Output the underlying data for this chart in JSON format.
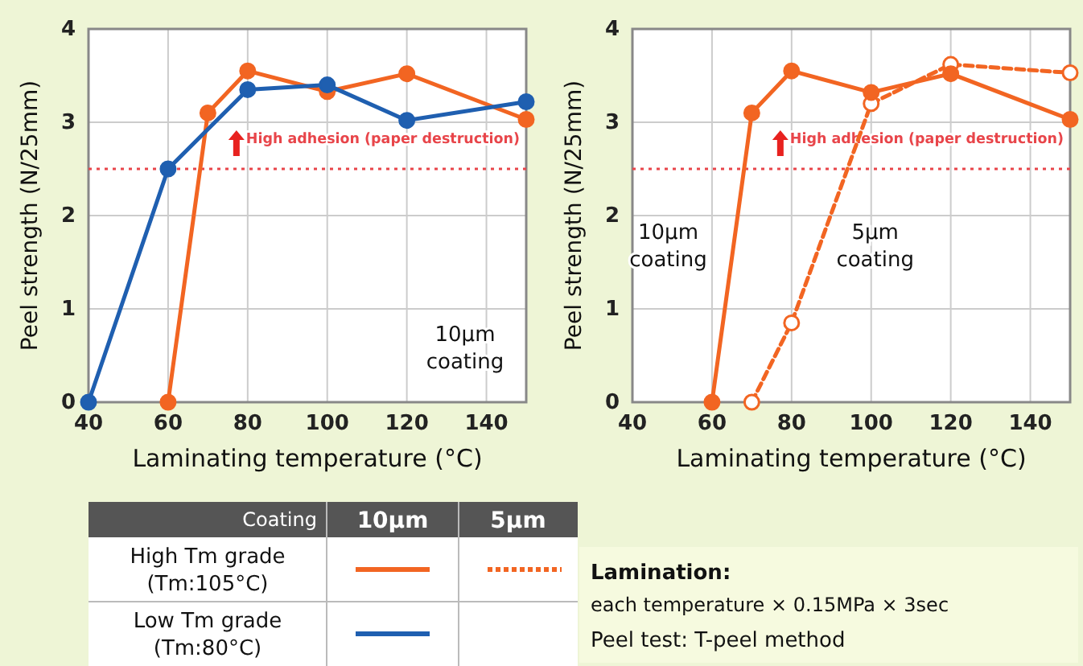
{
  "chart_data": [
    {
      "type": "line",
      "xlabel": "Laminating temperature (°C)",
      "ylabel": "Peel strength (N/25mm)",
      "xlim": [
        40,
        150
      ],
      "xticks": [
        40,
        60,
        80,
        100,
        120,
        140
      ],
      "ylim": [
        0,
        4
      ],
      "yticks": [
        0,
        1,
        2,
        3,
        4
      ],
      "grid": true,
      "marker": "circle",
      "series": [
        {
          "color": "#1f5fb0",
          "x": [
            40,
            60,
            80,
            100,
            120,
            150
          ],
          "values": [
            0,
            2.5,
            3.35,
            3.4,
            3.02,
            3.22
          ],
          "line_style": "solid"
        },
        {
          "color": "#f26522",
          "x": [
            60,
            70,
            80,
            100,
            120,
            150
          ],
          "values": [
            0,
            3.1,
            3.55,
            3.33,
            3.52,
            3.03
          ],
          "line_style": "solid"
        }
      ],
      "ref_lines": [
        {
          "axis": "y",
          "value": 2.5,
          "label": "High adhesion (paper destruction)",
          "color": "#e8454a",
          "line_style": "dotted"
        }
      ],
      "annotations": [
        "10μm\ncoating"
      ]
    },
    {
      "type": "line",
      "xlabel": "Laminating temperature (°C)",
      "ylabel": "Peel strength (N/25mm)",
      "xlim": [
        40,
        150
      ],
      "xticks": [
        40,
        60,
        80,
        100,
        120,
        140
      ],
      "ylim": [
        0,
        4
      ],
      "yticks": [
        0,
        1,
        2,
        3,
        4
      ],
      "grid": true,
      "marker": "circle",
      "series": [
        {
          "color": "#f26522",
          "x": [
            60,
            70,
            80,
            100,
            120,
            150
          ],
          "values": [
            0,
            3.1,
            3.55,
            3.32,
            3.52,
            3.03
          ],
          "line_style": "solid"
        },
        {
          "color": "#f26522",
          "x": [
            70,
            80,
            100,
            120,
            150
          ],
          "values": [
            0,
            0.85,
            3.2,
            3.62,
            3.53
          ],
          "line_style": "dashed"
        }
      ],
      "ref_lines": [
        {
          "axis": "y",
          "value": 2.5,
          "label": "High adhesion (paper destruction)",
          "color": "#e8454a",
          "line_style": "dotted"
        }
      ],
      "annotations": [
        "10μm\ncoating",
        "5μm\ncoating"
      ]
    },
    {
      "type": "other",
      "annotations": [
        "Coating",
        "10μm",
        "5μm",
        "High Tm grade\n(Tm:105°C)",
        "Low Tm grade\n(Tm:80°C)",
        "Lamination:",
        "each temperature × 0.15MPa × 3sec",
        "Peel test: T-peel method"
      ]
    }
  ]
}
